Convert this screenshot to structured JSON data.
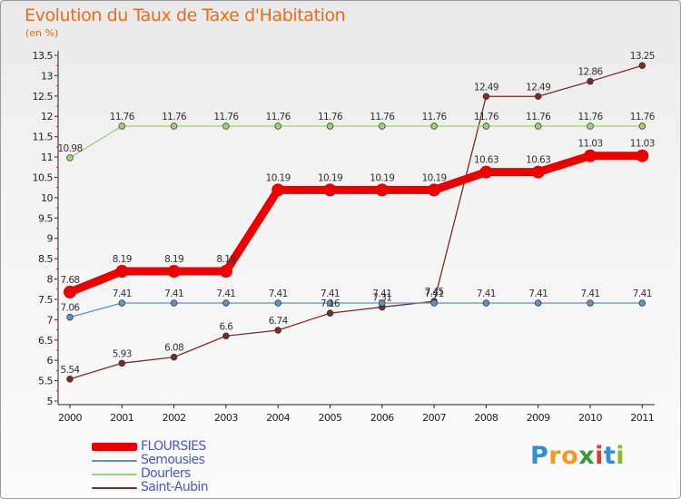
{
  "chart_data": {
    "type": "line",
    "title": "Evolution du Taux de Taxe d'Habitation",
    "subtitle": "(en %)",
    "x": [
      "2000",
      "2001",
      "2002",
      "2003",
      "2004",
      "2005",
      "2006",
      "2007",
      "2008",
      "2009",
      "2010",
      "2011"
    ],
    "ylim": [
      5,
      13.5
    ],
    "yticks": [
      "5",
      "5.5",
      "6",
      "6.5",
      "7",
      "7.5",
      "8",
      "8.5",
      "9",
      "9.5",
      "10",
      "10.5",
      "11",
      "11.5",
      "12",
      "12.5",
      "13",
      "13.5"
    ],
    "series": [
      {
        "name": "FLOURSIES",
        "color": "#ee0000",
        "values": [
          7.68,
          8.19,
          8.19,
          8.19,
          10.19,
          10.19,
          10.19,
          10.19,
          10.63,
          10.63,
          11.03,
          11.03
        ]
      },
      {
        "name": "Semousies",
        "color": "#5b93c9",
        "values": [
          7.06,
          7.41,
          7.41,
          7.41,
          7.41,
          7.41,
          7.41,
          7.41,
          7.41,
          7.41,
          7.41,
          7.41
        ]
      },
      {
        "name": "Dourlers",
        "color": "#9ad46b",
        "values": [
          10.98,
          11.76,
          11.76,
          11.76,
          11.76,
          11.76,
          11.76,
          11.76,
          11.76,
          11.76,
          11.76,
          11.76
        ]
      },
      {
        "name": "Saint-Aubin",
        "color": "#7a2c2c",
        "values": [
          5.54,
          5.93,
          6.08,
          6.6,
          6.74,
          7.16,
          7.31,
          7.45,
          12.49,
          12.49,
          12.86,
          13.25
        ]
      }
    ],
    "grid": false,
    "legend": "bottom-left"
  },
  "logo": {
    "letters": [
      "P",
      "r",
      "o",
      "x",
      "i",
      "t",
      "i"
    ],
    "colors": [
      "#2d8fd6",
      "#f29a1f",
      "#f29a1f",
      "#3a9a3a",
      "#e23a2a",
      "#2d8fd6",
      "#8ab82a"
    ]
  }
}
